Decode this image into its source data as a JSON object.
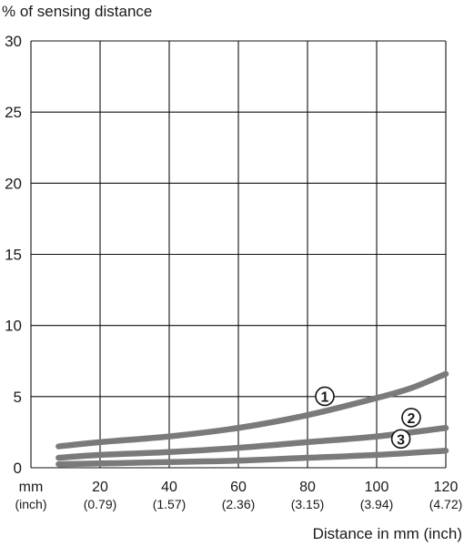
{
  "chart_data": {
    "type": "line",
    "ylabel": "% of sensing distance",
    "xlabel": "Distance in mm (inch)",
    "xlim": [
      0,
      120
    ],
    "ylim": [
      0,
      30
    ],
    "grid": true,
    "x_unit_label": "mm",
    "x_unit_label_secondary": "(inch)",
    "x_ticks": [
      {
        "value": 20,
        "label": "20",
        "sublabel": "(0.79)"
      },
      {
        "value": 40,
        "label": "40",
        "sublabel": "(1.57)"
      },
      {
        "value": 60,
        "label": "60",
        "sublabel": "(2.36)"
      },
      {
        "value": 80,
        "label": "80",
        "sublabel": "(3.15)"
      },
      {
        "value": 100,
        "label": "100",
        "sublabel": "(3.94)"
      },
      {
        "value": 120,
        "label": "120",
        "sublabel": "(4.72)"
      }
    ],
    "y_ticks": [
      0,
      5,
      10,
      15,
      20,
      25,
      30
    ],
    "series": [
      {
        "marker": "①",
        "color": "#7a7a7a",
        "x": [
          8,
          20,
          40,
          60,
          80,
          100,
          110,
          120
        ],
        "y": [
          1.5,
          1.8,
          2.2,
          2.8,
          3.7,
          4.9,
          5.6,
          6.6
        ]
      },
      {
        "marker": "②",
        "color": "#7a7a7a",
        "x": [
          8,
          20,
          40,
          60,
          80,
          100,
          120
        ],
        "y": [
          0.7,
          0.9,
          1.1,
          1.4,
          1.8,
          2.2,
          2.8
        ]
      },
      {
        "marker": "③",
        "color": "#7a7a7a",
        "x": [
          8,
          20,
          40,
          60,
          80,
          100,
          120
        ],
        "y": [
          0.25,
          0.3,
          0.4,
          0.5,
          0.7,
          0.9,
          1.2
        ]
      }
    ]
  }
}
